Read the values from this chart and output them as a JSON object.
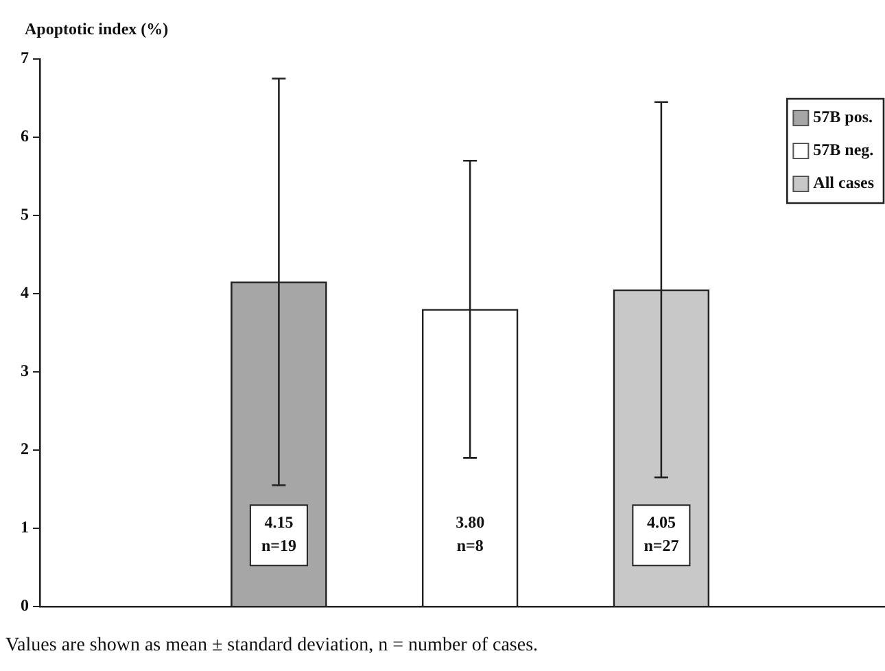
{
  "chart_data": {
    "type": "bar",
    "ylabel": "Apoptotic index (%)",
    "categories": [
      null,
      null,
      null
    ],
    "series": [
      {
        "name": "57B pos.",
        "color": "#a6a6a6",
        "values": [
          4.15,
          null,
          null
        ],
        "errors": [
          2.6,
          null,
          null
        ],
        "value_labels": [
          "4.15\nn=19",
          null,
          null
        ]
      },
      {
        "name": "57B neg.",
        "color": "#ffffff",
        "values": [
          null,
          3.8,
          null
        ],
        "errors": [
          null,
          1.9,
          null
        ],
        "value_labels": [
          null,
          "3.80\nn=8",
          null
        ]
      },
      {
        "name": "All cases",
        "color": "#c8c8c8",
        "values": [
          null,
          null,
          4.05
        ],
        "errors": [
          null,
          null,
          2.4
        ],
        "value_labels": [
          null,
          null,
          "4.05\nn=27"
        ]
      }
    ],
    "ylim": [
      0,
      7
    ],
    "yticks": [
      0,
      1,
      2,
      3,
      4,
      5,
      6,
      7
    ],
    "grid": false,
    "legend": "top right",
    "annotations": [
      "Values are shown as mean ± standard deviation, n = number of cases."
    ]
  }
}
